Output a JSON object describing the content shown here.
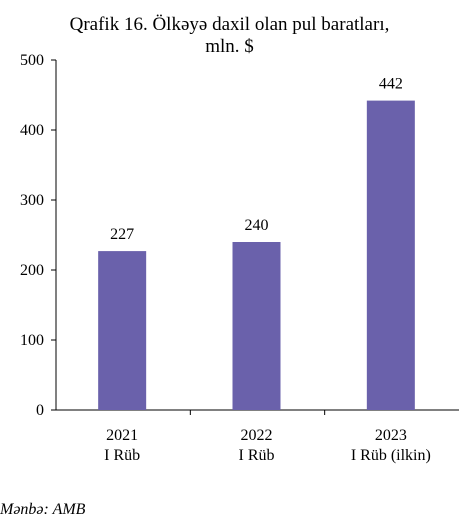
{
  "chart_data": {
    "type": "bar",
    "title_line1": "Qrafik 16. Ölkəyə daxil olan pul baratları,",
    "title_line2": "mln. $",
    "categories": [
      {
        "line1": "2021",
        "line2": "I Rüb"
      },
      {
        "line1": "2022",
        "line2": "I Rüb"
      },
      {
        "line1": "2023",
        "line2": "I Rüb (ilkin)"
      }
    ],
    "values": [
      227,
      240,
      442
    ],
    "data_labels": [
      "227",
      "240",
      "442"
    ],
    "ylim": [
      0,
      500
    ],
    "yticks": [
      0,
      100,
      200,
      300,
      400,
      500
    ],
    "grid": false,
    "bar_color": "#6a61ab"
  },
  "source": "Mənbə: AMB"
}
